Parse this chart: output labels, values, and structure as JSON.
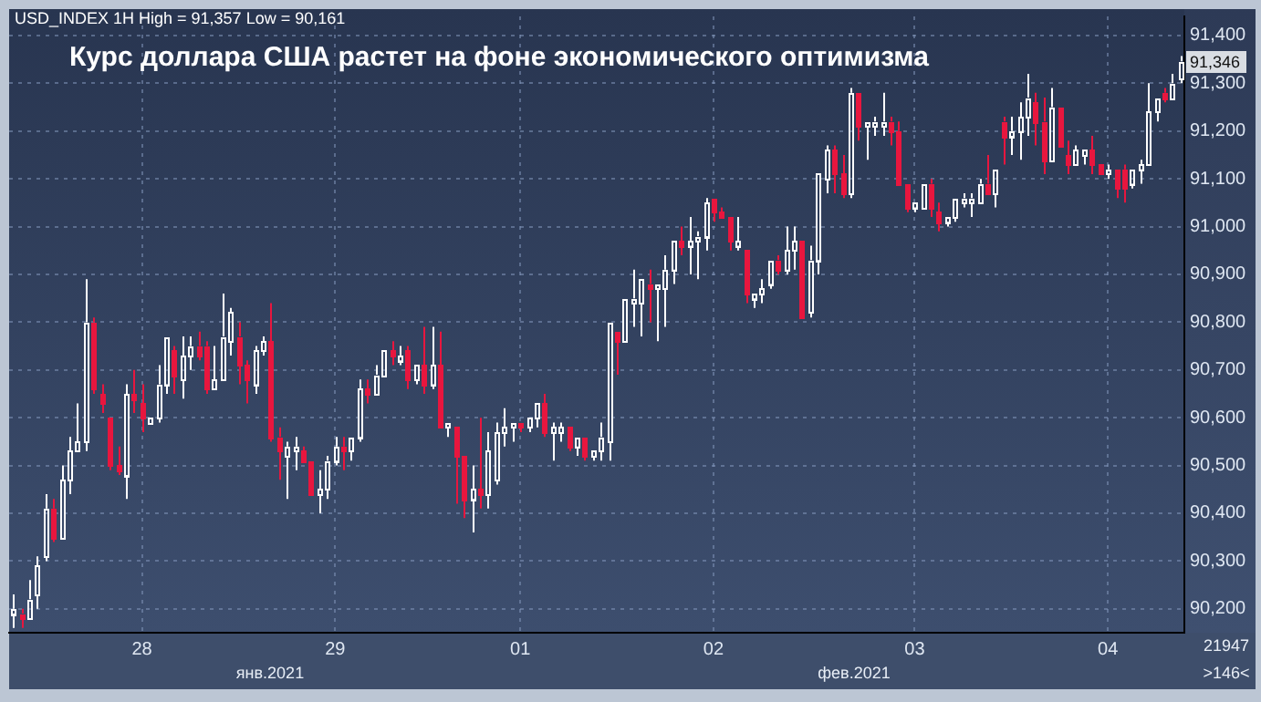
{
  "chart_data": {
    "type": "candlestick",
    "title": "Курс доллара США растет на фоне экономического оптимизма",
    "subtitle": "USD_INDEX 1H High = 91,357 Low = 90,161",
    "categories": [
      null,
      null,
      null,
      null,
      null,
      null,
      null,
      null,
      null,
      null,
      null,
      null,
      null,
      null,
      null,
      null,
      "28",
      null,
      null,
      null,
      null,
      null,
      null,
      null,
      null,
      null,
      null,
      null,
      null,
      null,
      null,
      null,
      null,
      null,
      null,
      null,
      null,
      null,
      null,
      null,
      "29",
      null,
      null,
      null,
      null,
      null,
      null,
      null,
      null,
      null,
      null,
      null,
      null,
      null,
      null,
      null,
      null,
      null,
      null,
      null,
      null,
      null,
      null,
      "01",
      null,
      null,
      null,
      null,
      null,
      null,
      null,
      null,
      null,
      null,
      null,
      null,
      null,
      null,
      null,
      null,
      null,
      null,
      null,
      null,
      null,
      null,
      null,
      "02",
      null,
      null,
      null,
      null,
      null,
      null,
      null,
      null,
      null,
      null,
      null,
      null,
      null,
      null,
      null,
      null,
      null,
      null,
      null,
      null,
      null,
      null,
      null,
      null,
      "03",
      null,
      null,
      null,
      null,
      null,
      null,
      null,
      null,
      null,
      null,
      null,
      null,
      null,
      null,
      null,
      null,
      null,
      null,
      null,
      null,
      null,
      null,
      null,
      "04",
      null,
      null,
      null,
      null,
      null,
      null,
      null,
      null,
      null
    ],
    "ohlc": [
      [
        90190,
        90230,
        90160,
        90200
      ],
      [
        90190,
        90200,
        90160,
        90180
      ],
      [
        90180,
        90260,
        90180,
        90220
      ],
      [
        90230,
        90310,
        90200,
        90290
      ],
      [
        90310,
        90440,
        90300,
        90410
      ],
      [
        90410,
        90430,
        90340,
        90350
      ],
      [
        90350,
        90500,
        90350,
        90470
      ],
      [
        90470,
        90560,
        90440,
        90530
      ],
      [
        90530,
        90630,
        90530,
        90550
      ],
      [
        90550,
        90890,
        90530,
        90800
      ],
      [
        90800,
        90810,
        90650,
        90660
      ],
      [
        90650,
        90670,
        90610,
        90630
      ],
      [
        90600,
        90600,
        90490,
        90500
      ],
      [
        90500,
        90540,
        90480,
        90490
      ],
      [
        90480,
        90670,
        90430,
        90650
      ],
      [
        90650,
        90700,
        90610,
        90640
      ],
      [
        90630,
        90670,
        90570,
        90600
      ],
      [
        90590,
        90600,
        90590,
        90600
      ],
      [
        90600,
        90710,
        90590,
        90670
      ],
      [
        90670,
        90770,
        90650,
        90770
      ],
      [
        90740,
        90750,
        90650,
        90690
      ],
      [
        90680,
        90770,
        90640,
        90730
      ],
      [
        90730,
        90770,
        90700,
        90750
      ],
      [
        90750,
        90780,
        90720,
        90730
      ],
      [
        90750,
        90760,
        90650,
        90660
      ],
      [
        90660,
        90750,
        90660,
        90680
      ],
      [
        90680,
        90860,
        90680,
        90770
      ],
      [
        90760,
        90830,
        90730,
        90820
      ],
      [
        90770,
        90800,
        90670,
        90710
      ],
      [
        90710,
        90720,
        90630,
        90680
      ],
      [
        90670,
        90750,
        90650,
        90740
      ],
      [
        90740,
        90770,
        90730,
        90760
      ],
      [
        90760,
        90840,
        90550,
        90560
      ],
      [
        90560,
        90580,
        90470,
        90530
      ],
      [
        90520,
        90550,
        90430,
        90540
      ],
      [
        90530,
        90560,
        90490,
        90540
      ],
      [
        90530,
        90540,
        90510,
        90510
      ],
      [
        90510,
        90510,
        90440,
        90440
      ],
      [
        90440,
        90490,
        90400,
        90450
      ],
      [
        90450,
        90520,
        90430,
        90510
      ],
      [
        90510,
        90560,
        90500,
        90540
      ],
      [
        90540,
        90560,
        90490,
        90530
      ],
      [
        90530,
        90560,
        90510,
        90560
      ],
      [
        90560,
        90680,
        90550,
        90660
      ],
      [
        90660,
        90680,
        90630,
        90650
      ],
      [
        90650,
        90710,
        90650,
        90690
      ],
      [
        90690,
        90740,
        90690,
        90740
      ],
      [
        90740,
        90760,
        90710,
        90730
      ],
      [
        90720,
        90750,
        90710,
        90730
      ],
      [
        90740,
        90750,
        90660,
        90680
      ],
      [
        90680,
        90710,
        90670,
        90710
      ],
      [
        90710,
        90790,
        90650,
        90670
      ],
      [
        90670,
        90790,
        90660,
        90710
      ],
      [
        90710,
        90780,
        90580,
        90580
      ],
      [
        90580,
        90590,
        90560,
        90590
      ],
      [
        90580,
        90580,
        90420,
        90520
      ],
      [
        90520,
        90520,
        90390,
        90430
      ],
      [
        90430,
        90500,
        90360,
        90450
      ],
      [
        90450,
        90600,
        90410,
        90440
      ],
      [
        90440,
        90570,
        90410,
        90530
      ],
      [
        90470,
        90590,
        90460,
        90570
      ],
      [
        90570,
        90620,
        90540,
        90580
      ],
      [
        90580,
        90590,
        90550,
        90590
      ],
      [
        90590,
        90590,
        90570,
        90580
      ],
      [
        90580,
        90600,
        90570,
        90600
      ],
      [
        90600,
        90630,
        90580,
        90630
      ],
      [
        90630,
        90650,
        90560,
        90570
      ],
      [
        90570,
        90590,
        90510,
        90580
      ],
      [
        90570,
        90590,
        90550,
        90580
      ],
      [
        90580,
        90580,
        90530,
        90540
      ],
      [
        90540,
        90560,
        90520,
        90560
      ],
      [
        90560,
        90560,
        90510,
        90520
      ],
      [
        90520,
        90530,
        90510,
        90530
      ],
      [
        90530,
        90590,
        90510,
        90560
      ],
      [
        90550,
        90800,
        90510,
        90800
      ],
      [
        90780,
        90780,
        90690,
        90760
      ],
      [
        90760,
        90850,
        90760,
        90850
      ],
      [
        90840,
        90910,
        90790,
        90850
      ],
      [
        90840,
        90890,
        90770,
        90890
      ],
      [
        90880,
        90910,
        90800,
        90870
      ],
      [
        90870,
        90880,
        90760,
        90880
      ],
      [
        90870,
        90940,
        90790,
        90910
      ],
      [
        90910,
        90970,
        90880,
        90970
      ],
      [
        90970,
        91000,
        90940,
        90960
      ],
      [
        90960,
        91020,
        90900,
        90970
      ],
      [
        90970,
        90990,
        90890,
        90980
      ],
      [
        90980,
        91060,
        90950,
        91050
      ],
      [
        91060,
        91060,
        91010,
        91030
      ],
      [
        91030,
        91040,
        91020,
        91020
      ],
      [
        91020,
        91020,
        90950,
        90970
      ],
      [
        90960,
        91020,
        90950,
        90970
      ],
      [
        90950,
        90950,
        90840,
        90860
      ],
      [
        90850,
        90860,
        90830,
        90860
      ],
      [
        90860,
        90890,
        90840,
        90870
      ],
      [
        90880,
        90930,
        90870,
        90930
      ],
      [
        90930,
        90940,
        90900,
        90910
      ],
      [
        90910,
        91000,
        90900,
        90950
      ],
      [
        90950,
        91000,
        90910,
        90970
      ],
      [
        90970,
        90970,
        90810,
        90810
      ],
      [
        90820,
        90960,
        90810,
        90930
      ],
      [
        90930,
        91110,
        90900,
        91110
      ],
      [
        91100,
        91170,
        91070,
        91160
      ],
      [
        91160,
        91170,
        91070,
        91110
      ],
      [
        91110,
        91150,
        91060,
        91070
      ],
      [
        91070,
        91290,
        91060,
        91280
      ],
      [
        91280,
        91280,
        91180,
        91210
      ],
      [
        91210,
        91220,
        91140,
        91220
      ],
      [
        91210,
        91230,
        91190,
        91220
      ],
      [
        91210,
        91280,
        91190,
        91220
      ],
      [
        91220,
        91230,
        91170,
        91200
      ],
      [
        91200,
        91220,
        91090,
        91090
      ],
      [
        91090,
        91090,
        91030,
        91040
      ],
      [
        91040,
        91050,
        91030,
        91050
      ],
      [
        91040,
        91090,
        91040,
        91090
      ],
      [
        91090,
        91100,
        91020,
        91040
      ],
      [
        91030,
        91050,
        90990,
        91010
      ],
      [
        91010,
        91020,
        91000,
        91020
      ],
      [
        91020,
        91060,
        91010,
        91060
      ],
      [
        91050,
        91070,
        91040,
        91060
      ],
      [
        91050,
        91070,
        91020,
        91060
      ],
      [
        91050,
        91100,
        91050,
        91090
      ],
      [
        91090,
        91150,
        91070,
        91070
      ],
      [
        91070,
        91120,
        91040,
        91120
      ],
      [
        91220,
        91230,
        91130,
        91190
      ],
      [
        91190,
        91230,
        91150,
        91200
      ],
      [
        91200,
        91260,
        91140,
        91230
      ],
      [
        91230,
        91320,
        91190,
        91270
      ],
      [
        91260,
        91280,
        91170,
        91220
      ],
      [
        91220,
        91270,
        91110,
        91140
      ],
      [
        91140,
        91290,
        91140,
        91250
      ],
      [
        91250,
        91250,
        91170,
        91170
      ],
      [
        91150,
        91180,
        91110,
        91130
      ],
      [
        91130,
        91170,
        91130,
        91160
      ],
      [
        91150,
        91160,
        91130,
        91160
      ],
      [
        91160,
        91190,
        91110,
        91130
      ],
      [
        91130,
        91130,
        91110,
        91110
      ],
      [
        91110,
        91130,
        91100,
        91120
      ],
      [
        91120,
        91120,
        91060,
        91080
      ],
      [
        91120,
        91130,
        91050,
        91080
      ],
      [
        91090,
        91120,
        91080,
        91120
      ],
      [
        91120,
        91140,
        91090,
        91130
      ],
      [
        91130,
        91300,
        91130,
        91240
      ],
      [
        91240,
        91270,
        91220,
        91270
      ],
      [
        91280,
        91290,
        91260,
        91270
      ],
      [
        91270,
        91320,
        91270,
        91300
      ],
      [
        91310,
        91357,
        91300,
        91346
      ]
    ],
    "colors": [
      "#ffffff",
      "#e8163e",
      "#ffffff",
      "#ffffff",
      "#ffffff",
      "#e8163e",
      "#ffffff",
      "#ffffff",
      "#ffffff",
      "#ffffff",
      "#e8163e",
      "#e8163e",
      "#e8163e",
      "#e8163e",
      "#ffffff",
      "#e8163e",
      "#e8163e",
      "#ffffff",
      "#ffffff",
      "#ffffff",
      "#e8163e",
      "#ffffff",
      "#ffffff",
      "#e8163e",
      "#e8163e",
      "#ffffff",
      "#ffffff",
      "#ffffff",
      "#e8163e",
      "#e8163e",
      "#ffffff",
      "#ffffff",
      "#e8163e",
      "#e8163e",
      "#ffffff",
      "#ffffff",
      "#e8163e",
      "#e8163e",
      "#ffffff",
      "#ffffff",
      "#ffffff",
      "#e8163e",
      "#ffffff",
      "#ffffff",
      "#e8163e",
      "#ffffff",
      "#ffffff",
      "#e8163e",
      "#ffffff",
      "#e8163e",
      "#ffffff",
      "#e8163e",
      "#ffffff",
      "#e8163e",
      "#ffffff",
      "#e8163e",
      "#e8163e",
      "#ffffff",
      "#e8163e",
      "#ffffff",
      "#ffffff",
      "#ffffff",
      "#ffffff",
      "#e8163e",
      "#ffffff",
      "#ffffff",
      "#e8163e",
      "#ffffff",
      "#ffffff",
      "#e8163e",
      "#ffffff",
      "#e8163e",
      "#ffffff",
      "#ffffff",
      "#ffffff",
      "#e8163e",
      "#ffffff",
      "#ffffff",
      "#ffffff",
      "#e8163e",
      "#ffffff",
      "#ffffff",
      "#ffffff",
      "#e8163e",
      "#ffffff",
      "#ffffff",
      "#ffffff",
      "#e8163e",
      "#e8163e",
      "#e8163e",
      "#ffffff",
      "#e8163e",
      "#ffffff",
      "#ffffff",
      "#ffffff",
      "#e8163e",
      "#ffffff",
      "#ffffff",
      "#e8163e",
      "#ffffff",
      "#ffffff",
      "#ffffff",
      "#e8163e",
      "#e8163e",
      "#ffffff",
      "#e8163e",
      "#ffffff",
      "#ffffff",
      "#ffffff",
      "#e8163e",
      "#e8163e",
      "#e8163e",
      "#ffffff",
      "#ffffff",
      "#e8163e",
      "#e8163e",
      "#ffffff",
      "#ffffff",
      "#ffffff",
      "#ffffff",
      "#ffffff",
      "#e8163e",
      "#ffffff",
      "#e8163e",
      "#ffffff",
      "#ffffff",
      "#ffffff",
      "#e8163e",
      "#e8163e",
      "#ffffff",
      "#e8163e",
      "#e8163e",
      "#ffffff",
      "#ffffff",
      "#e8163e",
      "#e8163e",
      "#ffffff",
      "#e8163e",
      "#e8163e",
      "#ffffff",
      "#ffffff",
      "#ffffff",
      "#ffffff",
      "#e8163e",
      "#ffffff",
      "#ffffff"
    ],
    "ylim": [
      90150,
      91440
    ],
    "yticks": [
      {
        "value": 90200,
        "label": "90,200"
      },
      {
        "value": 90300,
        "label": "90,300"
      },
      {
        "value": 90400,
        "label": "90,400"
      },
      {
        "value": 90500,
        "label": "90,500"
      },
      {
        "value": 90600,
        "label": "90,600"
      },
      {
        "value": 90700,
        "label": "90,700"
      },
      {
        "value": 90800,
        "label": "90,800"
      },
      {
        "value": 90900,
        "label": "90,900"
      },
      {
        "value": 91000,
        "label": "91,000"
      },
      {
        "value": 91100,
        "label": "91,100"
      },
      {
        "value": 91200,
        "label": "91,200"
      },
      {
        "value": 91300,
        "label": "91,300"
      },
      {
        "value": 91400,
        "label": "91,400"
      }
    ],
    "grid": true,
    "legend": false,
    "annotations": [
      {
        "text": "91,346",
        "y": 91346
      },
      "янв.2021",
      "фев.2021",
      "21947",
      ">146<"
    ]
  }
}
